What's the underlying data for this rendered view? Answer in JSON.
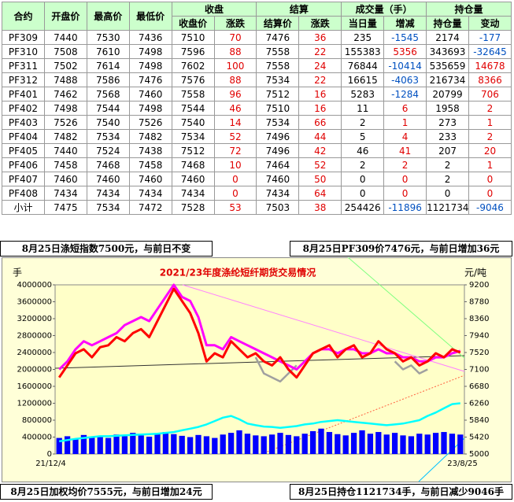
{
  "table": {
    "header_top": [
      "合约",
      "开盘价",
      "最高价",
      "最低价",
      "收盘",
      "结算",
      "成交量（手）",
      "持仓量"
    ],
    "header_sub": [
      "收盘价",
      "涨跌",
      "结算价",
      "涨跌",
      "当日量",
      "增减",
      "持仓量",
      "变动"
    ],
    "rows": [
      [
        "PF309",
        "7440",
        "7530",
        "7436",
        "7510",
        "70",
        "7476",
        "36",
        "235",
        "-1545",
        "2174",
        "-177"
      ],
      [
        "PF310",
        "7508",
        "7610",
        "7498",
        "7596",
        "88",
        "7558",
        "22",
        "155383",
        "5356",
        "343693",
        "-32645"
      ],
      [
        "PF311",
        "7502",
        "7614",
        "7498",
        "7602",
        "100",
        "7558",
        "24",
        "76844",
        "-10414",
        "535659",
        "14678"
      ],
      [
        "PF312",
        "7488",
        "7586",
        "7476",
        "7576",
        "88",
        "7534",
        "22",
        "16615",
        "-4063",
        "216734",
        "8366"
      ],
      [
        "PF401",
        "7462",
        "7568",
        "7460",
        "7558",
        "96",
        "7512",
        "16",
        "5283",
        "-1284",
        "20799",
        "706"
      ],
      [
        "PF402",
        "7498",
        "7544",
        "7498",
        "7544",
        "46",
        "7510",
        "16",
        "11",
        "6",
        "1958",
        "2"
      ],
      [
        "PF403",
        "7526",
        "7540",
        "7526",
        "7540",
        "14",
        "7534",
        "66",
        "2",
        "1",
        "273",
        "1"
      ],
      [
        "PF404",
        "7482",
        "7534",
        "7482",
        "7534",
        "52",
        "7496",
        "44",
        "5",
        "4",
        "233",
        "2"
      ],
      [
        "PF405",
        "7440",
        "7524",
        "7438",
        "7512",
        "72",
        "7496",
        "42",
        "46",
        "41",
        "207",
        "20"
      ],
      [
        "PF406",
        "7458",
        "7468",
        "7458",
        "7468",
        "10",
        "7464",
        "52",
        "2",
        "2",
        "2",
        "1"
      ],
      [
        "PF407",
        "7460",
        "7460",
        "7460",
        "7460",
        "0",
        "7460",
        "50",
        "0",
        "0",
        "2",
        "0"
      ],
      [
        "PF408",
        "7434",
        "7434",
        "7434",
        "7434",
        "0",
        "7434",
        "64",
        "0",
        "0",
        "0",
        "0"
      ],
      [
        "小计",
        "7475",
        "7534",
        "7472",
        "7528",
        "53",
        "7503",
        "38",
        "254426",
        "-11896",
        "1121734",
        "-9046"
      ]
    ]
  },
  "banners": [
    "8月25日涤短指数7500元，与前日不变",
    "8月25日PF309价7476元，与前日增加36元",
    "8月25日加权均价7555元，与前日增加24元",
    "8月25日持仓1121734手，与前日减少9046手"
  ],
  "chart_data": {
    "type": "combo",
    "title": "2021/23年度涤纶短纤期货交易情况",
    "y_label": "手",
    "y2_label": "元/吨",
    "categories": [
      "21/12/4",
      null,
      null,
      null,
      null,
      null,
      null,
      null,
      null,
      null,
      null,
      null,
      null,
      null,
      null,
      null,
      null,
      null,
      null,
      null,
      null,
      null,
      null,
      null,
      null,
      null,
      null,
      null,
      null,
      null,
      null,
      null,
      null,
      null,
      null,
      null,
      null,
      null,
      null,
      null,
      null,
      null,
      null,
      null,
      null,
      null,
      null,
      null,
      null,
      "23/8/25"
    ],
    "ylim": [
      0,
      4000000
    ],
    "yticks": [
      0,
      400000,
      800000,
      1200000,
      1600000,
      2000000,
      2400000,
      2800000,
      3200000,
      3600000,
      4000000
    ],
    "y2lim": [
      5000,
      9200
    ],
    "y2ticks": [
      5000,
      5420,
      5840,
      6260,
      6680,
      7100,
      7520,
      7940,
      8360,
      8780,
      9200
    ],
    "series": [
      {
        "kind": "bar",
        "axis": "y",
        "color": "#0000ff",
        "values": [
          380000,
          420000,
          360000,
          450000,
          400000,
          430000,
          380000,
          460000,
          420000,
          500000,
          440000,
          410000,
          480000,
          520000,
          470000,
          430000,
          400000,
          450000,
          420000,
          380000,
          460000,
          500000,
          560000,
          480000,
          440000,
          420000,
          460000,
          500000,
          450000,
          420000,
          480000,
          540000,
          600000,
          520000,
          470000,
          440000,
          500000,
          560000,
          480000,
          520000,
          460000,
          500000,
          440000,
          420000,
          480000,
          460000,
          500000,
          520000,
          480000,
          460000
        ]
      },
      {
        "kind": "line",
        "axis": "y",
        "color": "#00ffff",
        "values": [
          300000,
          330000,
          360000,
          380000,
          400000,
          420000,
          420000,
          430000,
          440000,
          450000,
          460000,
          470000,
          480000,
          500000,
          520000,
          560000,
          600000,
          640000,
          700000,
          780000,
          860000,
          900000,
          820000,
          720000,
          680000,
          650000,
          640000,
          620000,
          640000,
          660000,
          700000,
          720000,
          760000,
          780000,
          800000,
          780000,
          760000,
          740000,
          720000,
          700000,
          680000,
          700000,
          720000,
          760000,
          800000,
          900000,
          980000,
          1080000,
          1180000,
          1200000
        ]
      },
      {
        "kind": "line",
        "axis": "y2",
        "color": "#a0a0a0",
        "values": [
          null,
          null,
          null,
          null,
          null,
          null,
          null,
          null,
          null,
          null,
          null,
          null,
          null,
          null,
          null,
          null,
          null,
          null,
          null,
          null,
          null,
          null,
          null,
          null,
          7400,
          7000,
          6900,
          6800,
          7000,
          7200,
          null,
          null,
          null,
          null,
          null,
          null,
          null,
          null,
          null,
          null,
          null,
          7300,
          7100,
          7200,
          7000,
          7100,
          null,
          null,
          null,
          null
        ]
      },
      {
        "kind": "line",
        "axis": "y2",
        "color": "#ff00ff",
        "values": [
          7100,
          7300,
          7600,
          7800,
          7700,
          7800,
          7900,
          8000,
          8200,
          8300,
          8400,
          8300,
          8600,
          8900,
          9200,
          8900,
          8800,
          8400,
          7700,
          7700,
          7600,
          7900,
          7800,
          7700,
          7600,
          7500,
          7400,
          7300,
          7200,
          7100,
          7300,
          7500,
          7600,
          7600,
          7500,
          7600,
          7600,
          7500,
          7500,
          7600,
          7500,
          7500,
          7400,
          7400,
          7300,
          7300,
          7400,
          7400,
          7500,
          7560
        ]
      },
      {
        "kind": "line",
        "axis": "y2",
        "color": "#ff0000",
        "values": [
          6900,
          7200,
          7500,
          7600,
          7400,
          7650,
          7700,
          7900,
          7800,
          8000,
          8100,
          7900,
          8300,
          8700,
          9100,
          8800,
          8500,
          8000,
          7300,
          7500,
          7400,
          7800,
          7600,
          7400,
          7500,
          7300,
          7200,
          7400,
          7100,
          6900,
          7200,
          7500,
          7600,
          7700,
          7400,
          7600,
          7700,
          7400,
          7500,
          7800,
          7600,
          7500,
          7300,
          7400,
          7200,
          7300,
          7500,
          7400,
          7600,
          7520
        ]
      }
    ]
  }
}
